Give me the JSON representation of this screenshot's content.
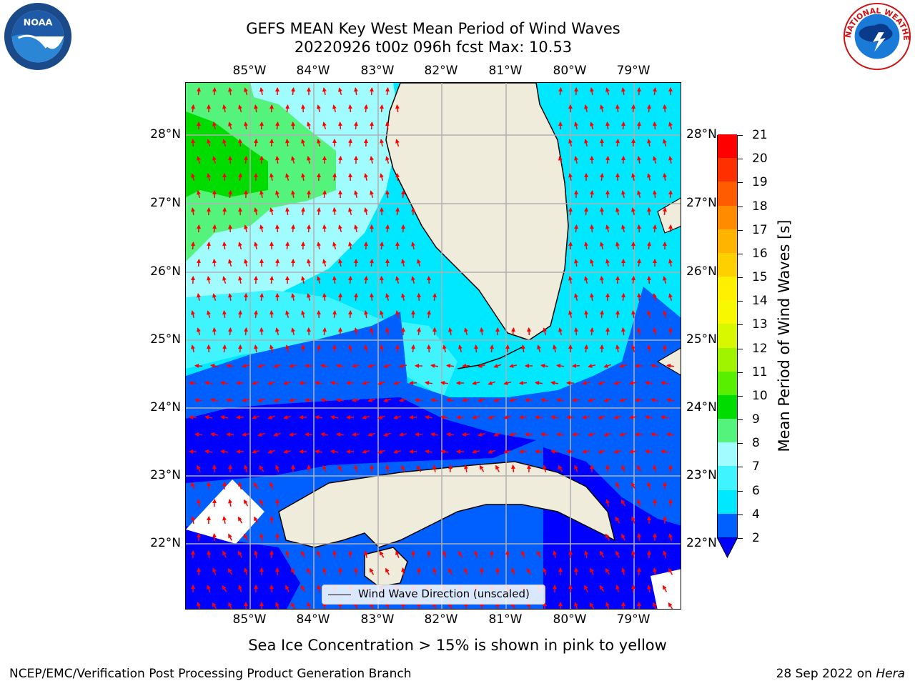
{
  "title": {
    "line1": "GEFS MEAN Key West Mean Period of Wind Waves",
    "line2": "20220926 t00z 096h fcst   Max: 10.53"
  },
  "map": {
    "lon_ticks": [
      "85°W",
      "84°W",
      "83°W",
      "82°W",
      "81°W",
      "80°W",
      "79°W"
    ],
    "lat_ticks": [
      "28°N",
      "27°N",
      "26°N",
      "25°N",
      "24°N",
      "23°N",
      "22°N"
    ],
    "land_color": "#efecdc",
    "arrow_color": "#ff0000",
    "legend_label": "Wind Wave Direction (unscaled)"
  },
  "colorbar": {
    "title": "Mean Period of Wind Waves [s]",
    "tick_labels": [
      "2",
      "4",
      "6",
      "7",
      "8",
      "9",
      "10",
      "11",
      "12",
      "13",
      "14",
      "15",
      "16",
      "17",
      "18",
      "19",
      "20",
      "21"
    ],
    "colors": [
      "#0060ff",
      "#00e8ff",
      "#40f4ff",
      "#a0fcff",
      "#54f47c",
      "#00dc00",
      "#58f000",
      "#a0f400",
      "#d8f800",
      "#f8f800",
      "#fff000",
      "#ffd000",
      "#ffb400",
      "#ff8c00",
      "#ff5c00",
      "#ff3000",
      "#ff0000"
    ],
    "under_color": "#0000ff"
  },
  "footer": {
    "ice_note": "Sea Ice Concentration > 15% is shown in pink to yellow",
    "left": "NCEP/EMC/Verification Post Processing Product Generation Branch",
    "right_date": "28 Sep 2022 on",
    "right_host": "Hera"
  },
  "logos": {
    "noaa_text": "NOAA",
    "nws_text": "NATIONAL WEATHER SERVICE"
  }
}
